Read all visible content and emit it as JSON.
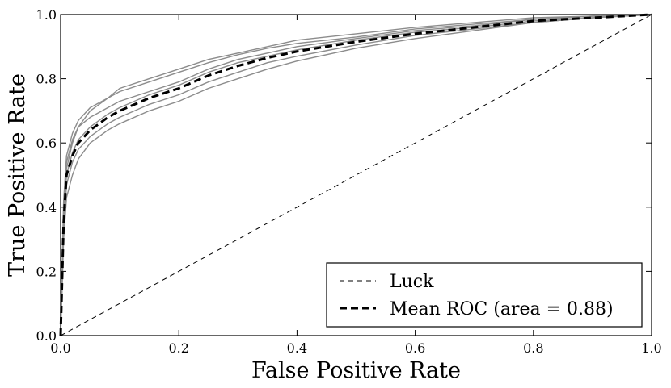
{
  "chart_data": {
    "type": "line",
    "title": "",
    "xlabel": "False Positive Rate",
    "ylabel": "True Positive Rate",
    "xlim": [
      0.0,
      1.0
    ],
    "ylim": [
      0.0,
      1.0
    ],
    "xticks": [
      "0.0",
      "0.2",
      "0.4",
      "0.6",
      "0.8",
      "1.0"
    ],
    "yticks": [
      "0.0",
      "0.2",
      "0.4",
      "0.6",
      "0.8",
      "1.0"
    ],
    "grid": false,
    "legend_position": "lower-right",
    "legend": [
      "Luck",
      "Mean ROC (area = 0.88)"
    ],
    "colors": {
      "fold_curves": "#8c8c8c",
      "mean_curve": "#000000",
      "luck_line": "#000000"
    },
    "series": [
      {
        "name": "Luck",
        "style": "dashed-thin",
        "x": [
          0.0,
          1.0
        ],
        "y": [
          0.0,
          1.0
        ]
      },
      {
        "name": "Mean ROC (area = 0.88)",
        "style": "dashed-thick",
        "x": [
          0.0,
          0.005,
          0.01,
          0.02,
          0.03,
          0.05,
          0.08,
          0.1,
          0.15,
          0.2,
          0.25,
          0.3,
          0.35,
          0.4,
          0.5,
          0.6,
          0.7,
          0.8,
          0.9,
          1.0
        ],
        "y": [
          0.0,
          0.35,
          0.5,
          0.56,
          0.6,
          0.64,
          0.68,
          0.7,
          0.74,
          0.77,
          0.81,
          0.84,
          0.865,
          0.885,
          0.915,
          0.94,
          0.96,
          0.98,
          0.99,
          1.0
        ]
      },
      {
        "style": "solid-gray",
        "x": [
          0.0,
          0.005,
          0.01,
          0.02,
          0.03,
          0.05,
          0.08,
          0.1,
          0.15,
          0.2,
          0.25,
          0.3,
          0.35,
          0.4,
          0.5,
          0.6,
          0.7,
          0.8,
          0.9,
          1.0
        ],
        "y": [
          0.0,
          0.42,
          0.56,
          0.63,
          0.67,
          0.71,
          0.74,
          0.76,
          0.79,
          0.82,
          0.85,
          0.875,
          0.895,
          0.91,
          0.93,
          0.955,
          0.97,
          0.985,
          0.995,
          1.0
        ]
      },
      {
        "style": "solid-gray",
        "x": [
          0.0,
          0.005,
          0.01,
          0.02,
          0.03,
          0.05,
          0.08,
          0.1,
          0.15,
          0.2,
          0.25,
          0.3,
          0.35,
          0.4,
          0.5,
          0.6,
          0.7,
          0.8,
          0.9,
          1.0
        ],
        "y": [
          0.0,
          0.38,
          0.52,
          0.6,
          0.65,
          0.7,
          0.74,
          0.77,
          0.8,
          0.83,
          0.86,
          0.88,
          0.9,
          0.92,
          0.94,
          0.96,
          0.975,
          0.99,
          0.995,
          1.0
        ]
      },
      {
        "style": "solid-gray",
        "x": [
          0.0,
          0.005,
          0.01,
          0.02,
          0.03,
          0.05,
          0.08,
          0.1,
          0.15,
          0.2,
          0.25,
          0.3,
          0.35,
          0.4,
          0.5,
          0.6,
          0.7,
          0.8,
          0.9,
          1.0
        ],
        "y": [
          0.0,
          0.33,
          0.47,
          0.54,
          0.58,
          0.62,
          0.66,
          0.68,
          0.72,
          0.75,
          0.79,
          0.82,
          0.85,
          0.87,
          0.905,
          0.935,
          0.955,
          0.975,
          0.99,
          1.0
        ]
      },
      {
        "style": "solid-gray",
        "x": [
          0.0,
          0.005,
          0.01,
          0.02,
          0.03,
          0.05,
          0.08,
          0.1,
          0.15,
          0.2,
          0.25,
          0.3,
          0.35,
          0.4,
          0.5,
          0.6,
          0.7,
          0.8,
          0.9,
          1.0
        ],
        "y": [
          0.0,
          0.3,
          0.43,
          0.5,
          0.55,
          0.6,
          0.64,
          0.66,
          0.7,
          0.73,
          0.77,
          0.8,
          0.83,
          0.855,
          0.895,
          0.925,
          0.95,
          0.975,
          0.99,
          1.0
        ]
      },
      {
        "style": "solid-gray",
        "x": [
          0.0,
          0.005,
          0.01,
          0.02,
          0.03,
          0.05,
          0.08,
          0.1,
          0.15,
          0.2,
          0.25,
          0.3,
          0.35,
          0.4,
          0.5,
          0.6,
          0.7,
          0.8,
          0.9,
          1.0
        ],
        "y": [
          0.0,
          0.4,
          0.54,
          0.61,
          0.65,
          0.68,
          0.71,
          0.73,
          0.76,
          0.79,
          0.83,
          0.86,
          0.88,
          0.9,
          0.925,
          0.95,
          0.965,
          0.985,
          0.995,
          1.0
        ]
      },
      {
        "style": "solid-gray",
        "x": [
          0.0,
          0.005,
          0.01,
          0.02,
          0.03,
          0.05,
          0.08,
          0.1,
          0.15,
          0.2,
          0.25,
          0.3,
          0.35,
          0.4,
          0.5,
          0.6,
          0.7,
          0.8,
          0.9,
          1.0
        ],
        "y": [
          0.0,
          0.36,
          0.5,
          0.57,
          0.61,
          0.65,
          0.69,
          0.71,
          0.75,
          0.78,
          0.82,
          0.85,
          0.87,
          0.89,
          0.92,
          0.945,
          0.96,
          0.98,
          0.99,
          1.0
        ]
      }
    ]
  }
}
